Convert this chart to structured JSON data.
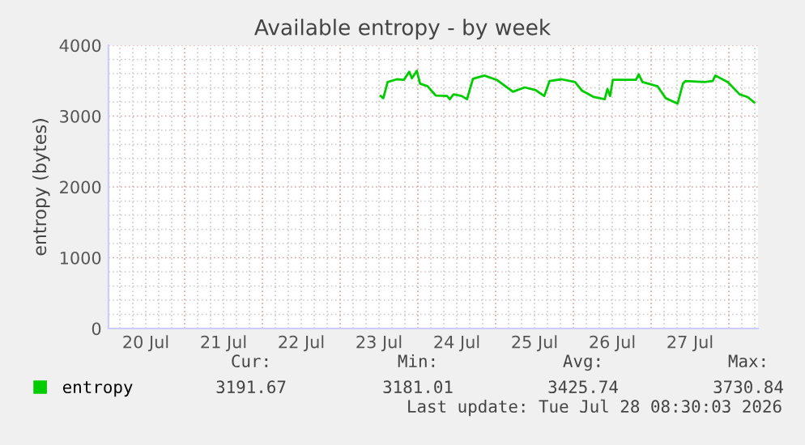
{
  "chart_data": {
    "type": "line",
    "title": "Available entropy - by week",
    "ylabel": "entropy (bytes)",
    "x": [
      "2026-07-23T12:30",
      "2026-07-23T13:20",
      "2026-07-23T14:40",
      "2026-07-23T17:30",
      "2026-07-23T19:40",
      "2026-07-23T21:20",
      "2026-07-23T22:10",
      "2026-07-23T23:40",
      "2026-07-24T00:40",
      "2026-07-24T03:00",
      "2026-07-24T05:30",
      "2026-07-24T09:00",
      "2026-07-24T09:50",
      "2026-07-24T11:00",
      "2026-07-24T13:30",
      "2026-07-24T15:10",
      "2026-07-24T17:00",
      "2026-07-24T20:30",
      "2026-07-25T00:20",
      "2026-07-25T05:20",
      "2026-07-25T09:00",
      "2026-07-25T12:20",
      "2026-07-25T15:00",
      "2026-07-25T16:40",
      "2026-07-25T20:20",
      "2026-07-26T00:30",
      "2026-07-26T02:40",
      "2026-07-26T06:20",
      "2026-07-26T09:40",
      "2026-07-26T10:30",
      "2026-07-26T11:20",
      "2026-07-26T12:10",
      "2026-07-26T19:20",
      "2026-07-26T20:10",
      "2026-07-26T21:20",
      "2026-07-27T02:00",
      "2026-07-27T04:30",
      "2026-07-27T08:10",
      "2026-07-27T09:50",
      "2026-07-27T10:40",
      "2026-07-27T16:30",
      "2026-07-27T19:00",
      "2026-07-27T19:50",
      "2026-07-27T23:40",
      "2026-07-28T03:20",
      "2026-07-28T05:50",
      "2026-07-28T07:50"
    ],
    "series": [
      {
        "name": "entropy",
        "color": "#00cc00",
        "values": [
          3284,
          3253,
          3481,
          3520,
          3512,
          3627,
          3535,
          3641,
          3459,
          3421,
          3291,
          3284,
          3238,
          3307,
          3284,
          3238,
          3527,
          3573,
          3512,
          3344,
          3406,
          3367,
          3284,
          3497,
          3520,
          3481,
          3360,
          3269,
          3238,
          3383,
          3284,
          3512,
          3512,
          3589,
          3481,
          3421,
          3253,
          3177,
          3459,
          3497,
          3481,
          3497,
          3573,
          3481,
          3307,
          3269,
          3193
        ]
      }
    ],
    "xlim": [
      "2026-07-20T00:30",
      "2026-07-28T09:00"
    ],
    "xticks": [
      {
        "value": "2026-07-20T12:00",
        "label": "20 Jul"
      },
      {
        "value": "2026-07-21T12:00",
        "label": "21 Jul"
      },
      {
        "value": "2026-07-22T12:00",
        "label": "22 Jul"
      },
      {
        "value": "2026-07-23T12:00",
        "label": "23 Jul"
      },
      {
        "value": "2026-07-24T12:00",
        "label": "24 Jul"
      },
      {
        "value": "2026-07-25T12:00",
        "label": "25 Jul"
      },
      {
        "value": "2026-07-26T12:00",
        "label": "26 Jul"
      },
      {
        "value": "2026-07-27T12:00",
        "label": "27 Jul"
      }
    ],
    "ylim": [
      0,
      4000
    ],
    "yticks": [
      0,
      1000,
      2000,
      3000,
      4000
    ],
    "grid": true,
    "legend": "bottom",
    "annotations": [
      "Cur:",
      "Min:",
      "Avg:",
      "Max:",
      "3191.67",
      "3181.01",
      "3425.74",
      "3730.84",
      "Last update: Tue Jul 28 08:30:03 2026"
    ]
  }
}
